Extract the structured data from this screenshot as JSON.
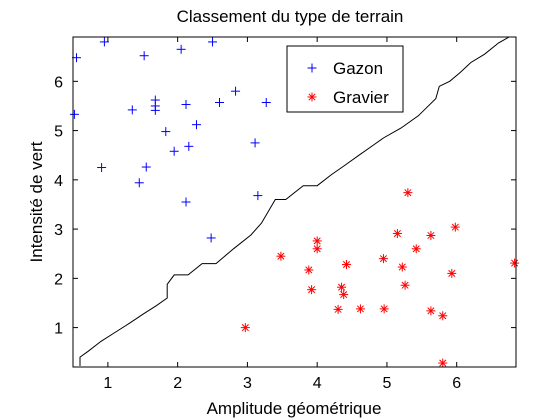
{
  "chart_data": {
    "type": "scatter",
    "title": "Classement du type de terrain",
    "xlabel": "Amplitude géométrique",
    "ylabel": "Intensité de vert",
    "xlim": [
      0.5,
      6.85
    ],
    "ylim": [
      0.2,
      6.9
    ],
    "xticks": [
      1,
      2,
      3,
      4,
      5,
      6
    ],
    "yticks": [
      1,
      2,
      3,
      4,
      5,
      6
    ],
    "legend_position": "top-right",
    "series": [
      {
        "name": "Gazon",
        "marker": "+",
        "color": "#0000ff",
        "points": [
          [
            0.55,
            6.48
          ],
          [
            0.95,
            6.8
          ],
          [
            1.52,
            6.52
          ],
          [
            2.05,
            6.65
          ],
          [
            2.5,
            6.8
          ],
          [
            0.52,
            5.33
          ],
          [
            1.35,
            5.42
          ],
          [
            1.68,
            5.62
          ],
          [
            1.68,
            5.5
          ],
          [
            1.68,
            5.41
          ],
          [
            2.12,
            5.53
          ],
          [
            2.6,
            5.57
          ],
          [
            2.83,
            5.8
          ],
          [
            3.27,
            5.57
          ],
          [
            1.83,
            4.98
          ],
          [
            2.27,
            5.12
          ],
          [
            0.91,
            4.25
          ],
          [
            1.55,
            4.26
          ],
          [
            1.95,
            4.58
          ],
          [
            2.16,
            4.68
          ],
          [
            1.45,
            3.94
          ],
          [
            3.11,
            4.75
          ],
          [
            3.15,
            3.68
          ],
          [
            2.12,
            3.55
          ],
          [
            2.48,
            2.82
          ]
        ]
      },
      {
        "name": "Gravier",
        "marker": "*",
        "color": "#ff0000",
        "points": [
          [
            5.3,
            3.74
          ],
          [
            5.98,
            3.04
          ],
          [
            4.0,
            2.76
          ],
          [
            5.15,
            2.91
          ],
          [
            5.63,
            2.87
          ],
          [
            3.48,
            2.45
          ],
          [
            4.0,
            2.6
          ],
          [
            4.42,
            2.28
          ],
          [
            4.95,
            2.4
          ],
          [
            5.22,
            2.23
          ],
          [
            5.42,
            2.6
          ],
          [
            3.88,
            2.17
          ],
          [
            5.93,
            2.1
          ],
          [
            6.83,
            2.31
          ],
          [
            3.92,
            1.77
          ],
          [
            4.35,
            1.82
          ],
          [
            4.38,
            1.67
          ],
          [
            4.3,
            1.37
          ],
          [
            4.62,
            1.38
          ],
          [
            4.96,
            1.38
          ],
          [
            5.26,
            1.86
          ],
          [
            5.63,
            1.34
          ],
          [
            5.8,
            1.24
          ],
          [
            2.97,
            1.0
          ],
          [
            5.8,
            0.28
          ]
        ]
      }
    ],
    "boundary": {
      "color": "#000000",
      "points": [
        [
          0.6,
          0.22
        ],
        [
          0.6,
          0.4
        ],
        [
          0.72,
          0.52
        ],
        [
          0.9,
          0.72
        ],
        [
          1.1,
          0.9
        ],
        [
          1.3,
          1.08
        ],
        [
          1.5,
          1.27
        ],
        [
          1.7,
          1.45
        ],
        [
          1.85,
          1.6
        ],
        [
          1.85,
          1.88
        ],
        [
          1.95,
          2.07
        ],
        [
          2.15,
          2.07
        ],
        [
          2.35,
          2.3
        ],
        [
          2.55,
          2.3
        ],
        [
          2.8,
          2.6
        ],
        [
          3.05,
          2.88
        ],
        [
          3.2,
          3.12
        ],
        [
          3.4,
          3.6
        ],
        [
          3.55,
          3.6
        ],
        [
          3.8,
          3.88
        ],
        [
          4.0,
          3.88
        ],
        [
          4.2,
          4.1
        ],
        [
          4.4,
          4.3
        ],
        [
          4.6,
          4.5
        ],
        [
          4.8,
          4.7
        ],
        [
          4.95,
          4.85
        ],
        [
          5.2,
          5.05
        ],
        [
          5.45,
          5.3
        ],
        [
          5.7,
          5.65
        ],
        [
          5.75,
          5.9
        ],
        [
          5.9,
          6.0
        ],
        [
          6.05,
          6.18
        ],
        [
          6.2,
          6.38
        ],
        [
          6.4,
          6.55
        ],
        [
          6.6,
          6.78
        ],
        [
          6.75,
          6.9
        ]
      ]
    }
  }
}
